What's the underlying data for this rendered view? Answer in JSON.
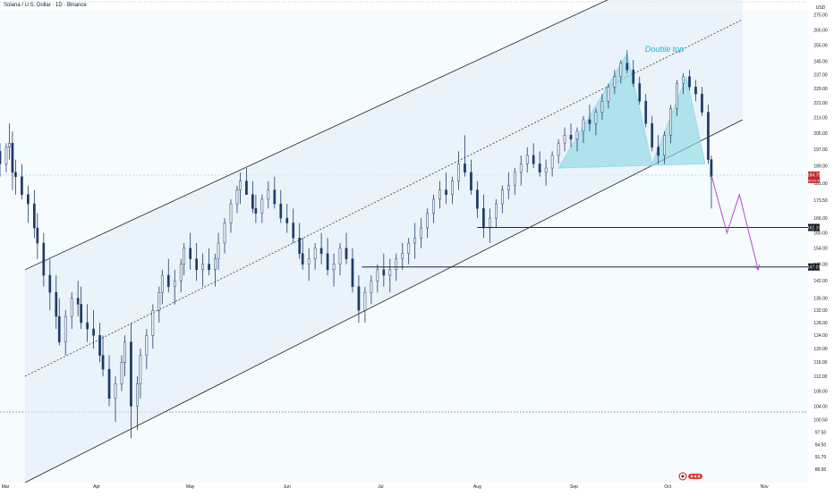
{
  "header": {
    "symbol_title": "Solana / U.S. Dollar · 1D · Binance"
  },
  "colors": {
    "background": "#f6fbfd",
    "bull": "#f3f6f9",
    "bear": "#1f3a66",
    "channel_line": "#1e1e1e",
    "pattern_fill": "#8fd8e6",
    "pattern_label": "#22b5cc",
    "projection": "#b44bd0",
    "price_tag": "#131722"
  },
  "chart_data": {
    "type": "candlestick",
    "title": "Solana / U.S. Dollar · 1D · Binance",
    "y_unit_label": "USD",
    "y_scale": "log",
    "ylim": [
      86,
      278
    ],
    "xlim": [
      "2024-03-01",
      "2024-11-15"
    ],
    "x_tick_labels": [
      {
        "label": "Mar",
        "date": "2024-03-01"
      },
      {
        "label": "Apr",
        "date": "2024-04-01"
      },
      {
        "label": "May",
        "date": "2024-05-01"
      },
      {
        "label": "Jun",
        "date": "2024-06-01"
      },
      {
        "label": "Jul",
        "date": "2024-07-01"
      },
      {
        "label": "Aug",
        "date": "2024-08-01"
      },
      {
        "label": "Sep",
        "date": "2024-09-01"
      },
      {
        "label": "Oct",
        "date": "2024-10-01"
      },
      {
        "label": "Nov",
        "date": "2024-11-01"
      }
    ],
    "y_ticks": [
      "275.00",
      "265.00",
      "255.00",
      "245.00",
      "237.00",
      "229.00",
      "221.00",
      "213.00",
      "205.00",
      "197.00",
      "189.00",
      "181.00",
      "173.50",
      "166.00",
      "160.00",
      "154.00",
      "148.00",
      "142.00",
      "136.00",
      "132.00",
      "128.00",
      "124.00",
      "120.00",
      "116.00",
      "112.00",
      "108.00",
      "104.00",
      "100.50",
      "97.50",
      "94.50",
      "91.70",
      "88.90"
    ],
    "candles_ohlc": [
      [
        "2024-03-01",
        196,
        200,
        184,
        190
      ],
      [
        "2024-03-03",
        190,
        200,
        186,
        198
      ],
      [
        "2024-03-04",
        198,
        210,
        192,
        200
      ],
      [
        "2024-03-05",
        200,
        206,
        178,
        186
      ],
      [
        "2024-03-06",
        186,
        192,
        176,
        184
      ],
      [
        "2024-03-08",
        184,
        190,
        174,
        176
      ],
      [
        "2024-03-10",
        176,
        180,
        164,
        172
      ],
      [
        "2024-03-12",
        172,
        178,
        158,
        162
      ],
      [
        "2024-03-13",
        162,
        168,
        150,
        156
      ],
      [
        "2024-03-15",
        156,
        160,
        140,
        144
      ],
      [
        "2024-03-17",
        144,
        150,
        132,
        138
      ],
      [
        "2024-03-19",
        138,
        144,
        126,
        130
      ],
      [
        "2024-03-20",
        130,
        136,
        121,
        122
      ],
      [
        "2024-03-22",
        122,
        132,
        118,
        130
      ],
      [
        "2024-03-24",
        130,
        138,
        126,
        136
      ],
      [
        "2024-03-26",
        136,
        142,
        130,
        134
      ],
      [
        "2024-03-27",
        134,
        140,
        126,
        128
      ],
      [
        "2024-03-29",
        128,
        134,
        122,
        126
      ],
      [
        "2024-03-31",
        126,
        132,
        120,
        124
      ],
      [
        "2024-04-02",
        124,
        128,
        116,
        118
      ],
      [
        "2024-04-03",
        118,
        124,
        112,
        114
      ],
      [
        "2024-04-05",
        114,
        118,
        104,
        106
      ],
      [
        "2024-04-07",
        106,
        112,
        100,
        110
      ],
      [
        "2024-04-09",
        110,
        118,
        108,
        116
      ],
      [
        "2024-04-10",
        116,
        124,
        112,
        122
      ],
      [
        "2024-04-12",
        122,
        128,
        96,
        104
      ],
      [
        "2024-04-14",
        104,
        112,
        98,
        110
      ],
      [
        "2024-04-15",
        110,
        120,
        106,
        118
      ],
      [
        "2024-04-17",
        118,
        126,
        114,
        124
      ],
      [
        "2024-04-19",
        124,
        134,
        120,
        132
      ],
      [
        "2024-04-21",
        132,
        140,
        128,
        138
      ],
      [
        "2024-04-22",
        138,
        146,
        134,
        144
      ],
      [
        "2024-04-24",
        144,
        150,
        138,
        140
      ],
      [
        "2024-04-26",
        140,
        146,
        134,
        142
      ],
      [
        "2024-04-28",
        142,
        150,
        138,
        148
      ],
      [
        "2024-04-29",
        148,
        156,
        144,
        154
      ],
      [
        "2024-05-01",
        154,
        160,
        146,
        150
      ],
      [
        "2024-05-03",
        150,
        156,
        142,
        146
      ],
      [
        "2024-05-05",
        146,
        152,
        140,
        148
      ],
      [
        "2024-05-07",
        148,
        154,
        144,
        146
      ],
      [
        "2024-05-09",
        146,
        152,
        140,
        150
      ],
      [
        "2024-05-10",
        150,
        160,
        146,
        156
      ],
      [
        "2024-05-12",
        156,
        166,
        152,
        164
      ],
      [
        "2024-05-14",
        164,
        174,
        160,
        172
      ],
      [
        "2024-05-16",
        172,
        180,
        168,
        178
      ],
      [
        "2024-05-17",
        178,
        186,
        172,
        182
      ],
      [
        "2024-05-19",
        182,
        188,
        176,
        176
      ],
      [
        "2024-05-21",
        176,
        182,
        168,
        170
      ],
      [
        "2024-05-22",
        170,
        176,
        164,
        168
      ],
      [
        "2024-05-24",
        168,
        176,
        164,
        174
      ],
      [
        "2024-05-26",
        174,
        182,
        170,
        178
      ],
      [
        "2024-05-28",
        178,
        184,
        170,
        172
      ],
      [
        "2024-05-30",
        172,
        178,
        164,
        166
      ],
      [
        "2024-06-01",
        166,
        172,
        160,
        164
      ],
      [
        "2024-06-03",
        164,
        170,
        156,
        158
      ],
      [
        "2024-06-05",
        158,
        164,
        150,
        152
      ],
      [
        "2024-06-06",
        152,
        158,
        146,
        148
      ],
      [
        "2024-06-08",
        148,
        154,
        142,
        150
      ],
      [
        "2024-06-10",
        150,
        156,
        146,
        154
      ],
      [
        "2024-06-12",
        154,
        160,
        148,
        152
      ],
      [
        "2024-06-14",
        152,
        158,
        144,
        146
      ],
      [
        "2024-06-16",
        146,
        152,
        140,
        148
      ],
      [
        "2024-06-18",
        148,
        156,
        144,
        154
      ],
      [
        "2024-06-20",
        154,
        160,
        148,
        150
      ],
      [
        "2024-06-22",
        150,
        154,
        138,
        140
      ],
      [
        "2024-06-24",
        140,
        144,
        128,
        132
      ],
      [
        "2024-06-26",
        132,
        140,
        128,
        138
      ],
      [
        "2024-06-28",
        138,
        144,
        134,
        142
      ],
      [
        "2024-06-30",
        142,
        148,
        138,
        146
      ],
      [
        "2024-07-02",
        146,
        152,
        140,
        144
      ],
      [
        "2024-07-04",
        144,
        150,
        138,
        146
      ],
      [
        "2024-07-06",
        146,
        152,
        142,
        150
      ],
      [
        "2024-07-08",
        150,
        156,
        146,
        152
      ],
      [
        "2024-07-10",
        152,
        158,
        148,
        156
      ],
      [
        "2024-07-12",
        156,
        164,
        150,
        158
      ],
      [
        "2024-07-14",
        158,
        166,
        154,
        162
      ],
      [
        "2024-07-16",
        162,
        170,
        158,
        168
      ],
      [
        "2024-07-18",
        168,
        176,
        164,
        174
      ],
      [
        "2024-07-20",
        174,
        182,
        170,
        178
      ],
      [
        "2024-07-22",
        178,
        186,
        172,
        176
      ],
      [
        "2024-07-24",
        176,
        184,
        172,
        182
      ],
      [
        "2024-07-26",
        182,
        196,
        178,
        190
      ],
      [
        "2024-07-28",
        190,
        204,
        184,
        186
      ],
      [
        "2024-07-30",
        186,
        192,
        176,
        178
      ],
      [
        "2024-08-01",
        178,
        182,
        166,
        170
      ],
      [
        "2024-08-03",
        170,
        176,
        158,
        162
      ],
      [
        "2024-08-05",
        162,
        170,
        156,
        166
      ],
      [
        "2024-08-07",
        166,
        174,
        162,
        172
      ],
      [
        "2024-08-09",
        172,
        180,
        168,
        178
      ],
      [
        "2024-08-11",
        178,
        186,
        174,
        180
      ],
      [
        "2024-08-13",
        180,
        188,
        176,
        186
      ],
      [
        "2024-08-15",
        186,
        194,
        180,
        190
      ],
      [
        "2024-08-17",
        190,
        198,
        186,
        194
      ],
      [
        "2024-08-19",
        194,
        200,
        188,
        190
      ],
      [
        "2024-08-21",
        190,
        196,
        184,
        186
      ],
      [
        "2024-08-23",
        186,
        192,
        180,
        188
      ],
      [
        "2024-08-25",
        188,
        196,
        184,
        194
      ],
      [
        "2024-08-27",
        194,
        202,
        190,
        200
      ],
      [
        "2024-08-29",
        200,
        208,
        196,
        204
      ],
      [
        "2024-08-31",
        204,
        210,
        198,
        202
      ],
      [
        "2024-09-02",
        202,
        208,
        196,
        206
      ],
      [
        "2024-09-04",
        206,
        214,
        200,
        212
      ],
      [
        "2024-09-06",
        212,
        220,
        206,
        210
      ],
      [
        "2024-09-08",
        210,
        218,
        204,
        216
      ],
      [
        "2024-09-10",
        216,
        226,
        212,
        222
      ],
      [
        "2024-09-12",
        222,
        232,
        218,
        230
      ],
      [
        "2024-09-14",
        230,
        240,
        226,
        236
      ],
      [
        "2024-09-16",
        236,
        246,
        232,
        244
      ],
      [
        "2024-09-18",
        244,
        252,
        238,
        240
      ],
      [
        "2024-09-20",
        240,
        246,
        230,
        232
      ],
      [
        "2024-09-22",
        232,
        236,
        220,
        222
      ],
      [
        "2024-09-24",
        222,
        226,
        208,
        210
      ],
      [
        "2024-09-26",
        210,
        214,
        196,
        198
      ],
      [
        "2024-09-28",
        198,
        204,
        190,
        194
      ],
      [
        "2024-09-30",
        194,
        206,
        190,
        204
      ],
      [
        "2024-10-02",
        204,
        220,
        200,
        218
      ],
      [
        "2024-10-04",
        218,
        234,
        214,
        232
      ],
      [
        "2024-10-06",
        232,
        238,
        226,
        236
      ],
      [
        "2024-10-08",
        236,
        240,
        228,
        230
      ],
      [
        "2024-10-10",
        230,
        234,
        222,
        226
      ],
      [
        "2024-10-12",
        226,
        230,
        214,
        216
      ],
      [
        "2024-10-14",
        216,
        220,
        190,
        192
      ],
      [
        "2024-10-15",
        192,
        194,
        170,
        184
      ]
    ],
    "channel": {
      "upper_line": [
        [
          "2024-03-09",
          146
        ],
        [
          "2024-09-16",
          290
        ]
      ],
      "mid_line": [
        [
          "2024-03-09",
          112
        ],
        [
          "2024-10-25",
          272
        ]
      ],
      "lower_line": [
        [
          "2024-03-09",
          86
        ],
        [
          "2024-10-25",
          212
        ]
      ]
    },
    "pattern": {
      "name": "Double top",
      "points": [
        [
          "2024-08-27",
          188
        ],
        [
          "2024-09-18",
          250
        ],
        [
          "2024-09-26",
          190
        ],
        [
          "2024-10-07",
          236
        ],
        [
          "2024-10-13",
          190
        ]
      ]
    },
    "levels": [
      {
        "value": 162.19,
        "label": "162.19",
        "from": "2024-08-01",
        "to": "2024-11-15"
      },
      {
        "value": 147.01,
        "label": "147.01",
        "from": "2024-06-25",
        "to": "2024-11-15"
      }
    ],
    "reference_lines": [
      {
        "value": 102.5,
        "style": "dotted"
      },
      {
        "value": 184.75,
        "style": "dotted"
      }
    ],
    "last_price": {
      "value": 184.75,
      "label": "184.75",
      "countdown": "05:54:31"
    },
    "projection": [
      [
        "2024-10-15",
        184.75
      ],
      [
        "2024-10-20",
        160
      ],
      [
        "2024-10-24",
        176
      ],
      [
        "2024-10-30",
        146
      ]
    ]
  }
}
